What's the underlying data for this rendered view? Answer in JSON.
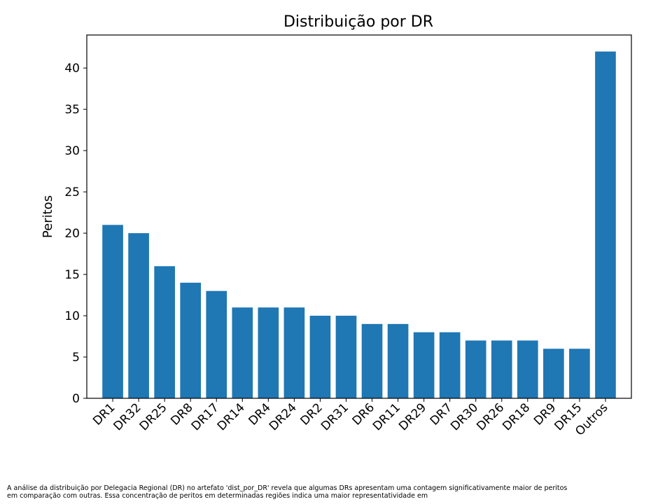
{
  "chart_data": {
    "type": "bar",
    "title": "Distribuição por DR",
    "xlabel": "",
    "ylabel": "Peritos",
    "categories": [
      "DR1",
      "DR32",
      "DR25",
      "DR8",
      "DR17",
      "DR14",
      "DR4",
      "DR24",
      "DR2",
      "DR31",
      "DR6",
      "DR11",
      "DR29",
      "DR7",
      "DR30",
      "DR26",
      "DR18",
      "DR9",
      "DR15",
      "Outros"
    ],
    "values": [
      21,
      20,
      16,
      14,
      13,
      11,
      11,
      11,
      10,
      10,
      9,
      9,
      8,
      8,
      7,
      7,
      7,
      6,
      6,
      42
    ],
    "ylim": [
      0,
      44
    ],
    "yticks": [
      0,
      5,
      10,
      15,
      20,
      25,
      30,
      35,
      40
    ],
    "bar_color": "#1f77b4",
    "grid": false,
    "legend": "none"
  },
  "caption": {
    "line1": "A análise da distribuição por Delegacia Regional (DR) no artefato 'dist_por_DR' revela que algumas DRs apresentam uma contagem significativamente maior de peritos",
    "line2": "em comparação com outras. Essa concentração de peritos em determinadas regiões indica uma maior representatividade em"
  }
}
